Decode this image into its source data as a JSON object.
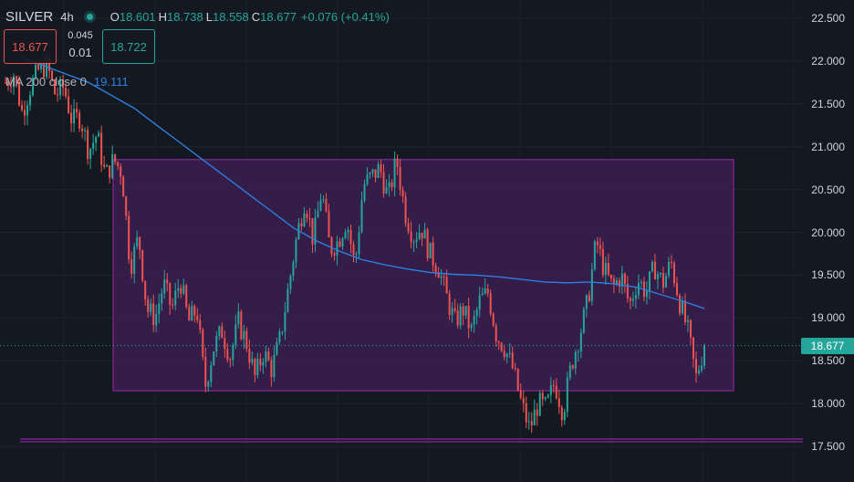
{
  "header": {
    "symbol": "SILVER",
    "timeframe": "4h",
    "open_key": "O",
    "open": "18.601",
    "high_key": "H",
    "high": "18.738",
    "low_key": "L",
    "low": "18.558",
    "close_key": "C",
    "close": "18.677",
    "change": "+0.076 (+0.41%)"
  },
  "trade": {
    "sell_price": "18.677",
    "spread_top": "0.045",
    "spread_bottom": "0.01",
    "buy_price": "18.722"
  },
  "indicator": {
    "label": "MA 200 close 0",
    "value": "19.111"
  },
  "price_axis": {
    "labels": [
      "22.500",
      "22.000",
      "21.500",
      "21.000",
      "20.500",
      "20.000",
      "19.500",
      "19.000",
      "18.500",
      "18.000",
      "17.500"
    ],
    "current_price": "18.677"
  },
  "colors": {
    "background": "#141821",
    "up": "#26a69a",
    "down": "#ef5350",
    "ma_line": "#2f7fe0",
    "box_fill": "#3a1f4f",
    "box_stroke": "#9c27b0"
  },
  "chart_data": {
    "type": "candlestick",
    "ylim": [
      17.5,
      22.5
    ],
    "grid": true,
    "last_price": 18.677,
    "rectangle": {
      "top": 20.85,
      "bottom": 18.15
    },
    "support_line": 17.57,
    "close_path": [
      21.75,
      21.85,
      21.4,
      21.7,
      21.9,
      21.95,
      21.6,
      21.7,
      21.3,
      21.35,
      20.95,
      21.15,
      20.65,
      20.85,
      20.7,
      19.6,
      19.95,
      19.1,
      19.0,
      19.4,
      19.1,
      19.45,
      18.95,
      19.1,
      18.2,
      18.65,
      18.85,
      18.55,
      18.95,
      18.7,
      18.3,
      18.6,
      18.4,
      18.75,
      19.35,
      19.95,
      20.4,
      19.9,
      20.5,
      19.8,
      19.9,
      20.15,
      19.6,
      20.55,
      20.65,
      20.75,
      20.4,
      20.85,
      20.25,
      19.95,
      20.05,
      19.75,
      19.6,
      19.25,
      18.95,
      19.1,
      18.85,
      19.2,
      19.3,
      18.8,
      18.65,
      18.4,
      18.0,
      17.7,
      18.0,
      17.95,
      18.25,
      17.9,
      18.45,
      18.8,
      19.2,
      19.9,
      19.55,
      19.35,
      19.5,
      19.15,
      19.45,
      19.3,
      19.6,
      19.4,
      19.65,
      19.2,
      18.85,
      18.3,
      18.677
    ],
    "ma200_path": [
      22.05,
      21.95,
      21.85,
      21.75,
      21.6,
      21.45,
      21.25,
      21.05,
      20.85,
      20.65,
      20.45,
      20.25,
      20.05,
      19.9,
      19.78,
      19.68,
      19.62,
      19.57,
      19.53,
      19.51,
      19.5,
      19.48,
      19.45,
      19.42,
      19.41,
      19.42,
      19.4,
      19.36,
      19.28,
      19.2,
      19.111
    ]
  }
}
